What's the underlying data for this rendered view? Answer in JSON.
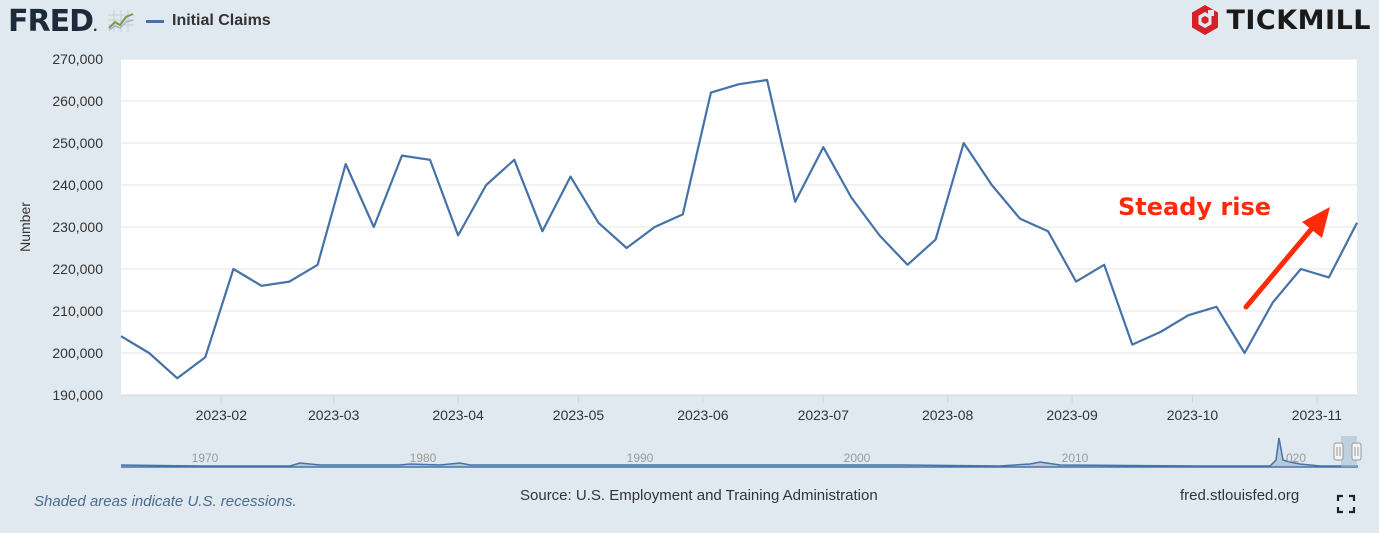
{
  "header": {
    "logo_text": "FRED",
    "legend_label": "Initial Claims",
    "brand": "TICKMILL"
  },
  "colors": {
    "series": "#4572a7",
    "annotation": "#ff2a0a",
    "plot_bg": "#ffffff",
    "page_bg": "#e1e9f0"
  },
  "footer": {
    "recession_note": "Shaded areas indicate U.S. recessions.",
    "source": "Source: U.S. Employment and Training Administration",
    "site": "fred.stlouisfed.org"
  },
  "navigator": {
    "year_labels": [
      "1970",
      "1980",
      "1990",
      "2000",
      "2010",
      "020"
    ]
  },
  "chart_data": {
    "type": "line",
    "ylabel": "Number",
    "xlabel": "",
    "ylim": [
      190000,
      270000
    ],
    "yticks": [
      190000,
      200000,
      210000,
      220000,
      230000,
      240000,
      250000,
      260000,
      270000
    ],
    "ytick_labels": [
      "190,000",
      "200,000",
      "210,000",
      "220,000",
      "230,000",
      "240,000",
      "250,000",
      "260,000",
      "270,000"
    ],
    "xlim": [
      "2023-01-07",
      "2023-11-11"
    ],
    "xticks": [
      "2023-02-01",
      "2023-03-01",
      "2023-04-01",
      "2023-05-01",
      "2023-06-01",
      "2023-07-01",
      "2023-08-01",
      "2023-09-01",
      "2023-10-01",
      "2023-11-01"
    ],
    "xtick_labels": [
      "2023-02",
      "2023-03",
      "2023-04",
      "2023-05",
      "2023-06",
      "2023-07",
      "2023-08",
      "2023-09",
      "2023-10",
      "2023-11"
    ],
    "grid": true,
    "series": [
      {
        "name": "Initial Claims",
        "x": [
          "2023-01-07",
          "2023-01-14",
          "2023-01-21",
          "2023-01-28",
          "2023-02-04",
          "2023-02-11",
          "2023-02-18",
          "2023-02-25",
          "2023-03-04",
          "2023-03-11",
          "2023-03-18",
          "2023-03-25",
          "2023-04-01",
          "2023-04-08",
          "2023-04-15",
          "2023-04-22",
          "2023-04-29",
          "2023-05-06",
          "2023-05-13",
          "2023-05-20",
          "2023-05-27",
          "2023-06-03",
          "2023-06-10",
          "2023-06-17",
          "2023-06-24",
          "2023-07-01",
          "2023-07-08",
          "2023-07-15",
          "2023-07-22",
          "2023-07-29",
          "2023-08-05",
          "2023-08-12",
          "2023-08-19",
          "2023-08-26",
          "2023-09-02",
          "2023-09-09",
          "2023-09-16",
          "2023-09-23",
          "2023-09-30",
          "2023-10-07",
          "2023-10-14",
          "2023-10-21",
          "2023-10-28",
          "2023-11-04",
          "2023-11-11"
        ],
        "values": [
          204000,
          200000,
          194000,
          199000,
          220000,
          216000,
          217000,
          221000,
          245000,
          230000,
          247000,
          246000,
          228000,
          240000,
          246000,
          229000,
          242000,
          231000,
          225000,
          230000,
          233000,
          262000,
          264000,
          265000,
          236000,
          249000,
          237000,
          228000,
          221000,
          227000,
          250000,
          240000,
          232000,
          229000,
          217000,
          221000,
          202000,
          205000,
          209000,
          211000,
          200000,
          212000,
          220000,
          218000,
          231000
        ]
      }
    ],
    "annotation": {
      "text": "Steady rise"
    }
  }
}
